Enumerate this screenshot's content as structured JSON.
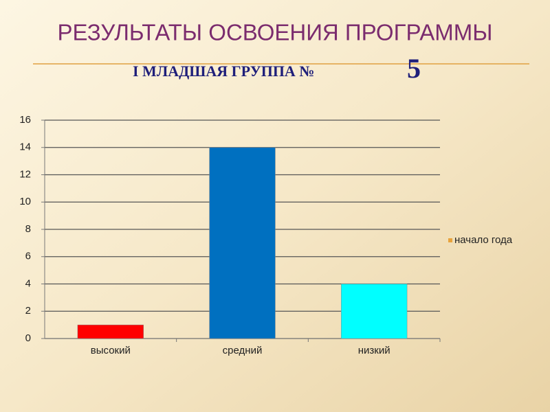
{
  "chart_data": {
    "type": "bar",
    "title": "РЕЗУЛЬТАТЫ ОСВОЕНИЯ ПРОГРАММЫ",
    "subtitle": "I МЛАДШАЯ ГРУППА №",
    "subtitle_number": "5",
    "categories": [
      "высокий",
      "средний",
      "низкий"
    ],
    "series": [
      {
        "name": "начало года",
        "color": "#e8a33c",
        "values": [
          1,
          14,
          4
        ],
        "colors": [
          "#ff0000",
          "#0070c0",
          "#00ffff"
        ]
      }
    ],
    "ylim": [
      0,
      16
    ],
    "yticks": [
      0,
      2,
      4,
      6,
      8,
      10,
      12,
      14,
      16
    ],
    "grid": true,
    "legend": "right"
  }
}
